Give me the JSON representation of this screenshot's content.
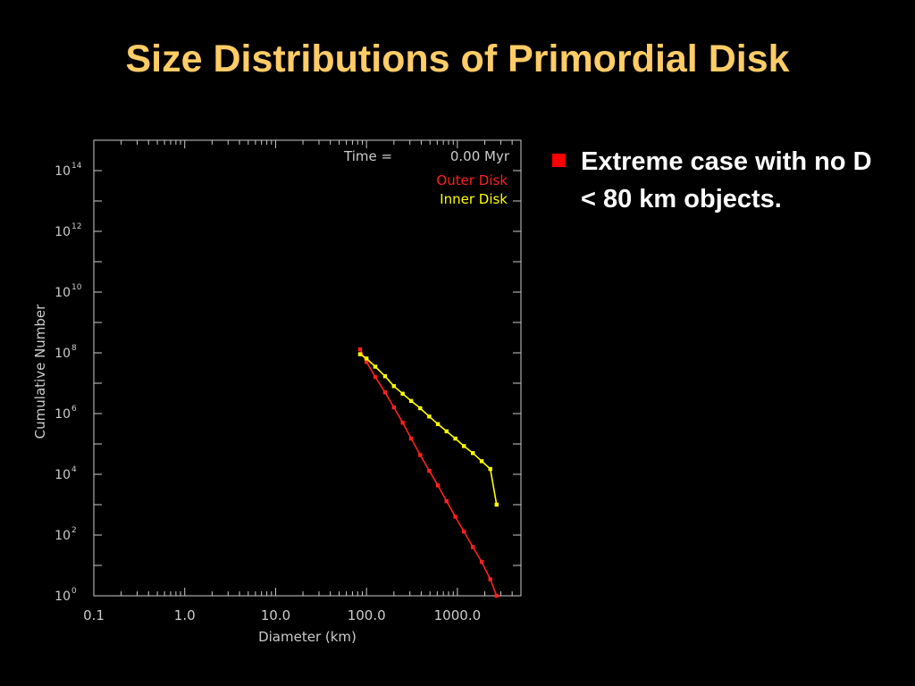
{
  "slide": {
    "title": "Size Distributions of Primordial Disk",
    "bullet_text": "Extreme case with no D < 80 km objects.",
    "title_color": "#ffcc66",
    "bullet_color": "#ff0000"
  },
  "chart_data": {
    "type": "line",
    "xscale": "log",
    "yscale": "log",
    "xlabel": "Diameter (km)",
    "ylabel": "Cumulative Number",
    "xlim": [
      0.1,
      5000
    ],
    "ylim": [
      1,
      1000000000000000.0
    ],
    "x_ticks": [
      0.1,
      1,
      10,
      100,
      1000
    ],
    "x_tick_labels": [
      "0.1",
      "1.0",
      "10.0",
      "100.0",
      "1000.0"
    ],
    "y_ticks": [
      1,
      100,
      10000,
      1000000,
      100000000,
      10000000000,
      1000000000000,
      100000000000000
    ],
    "y_tick_bases": [
      "10",
      "10",
      "10",
      "10",
      "10",
      "10",
      "10",
      "10"
    ],
    "y_tick_exps": [
      "0",
      "2",
      "4",
      "6",
      "8",
      "10",
      "12",
      "14"
    ],
    "annotation": {
      "label": "Time =",
      "value": "0.00 Myr"
    },
    "series": [
      {
        "name": "Outer Disk",
        "color": "#ff2020",
        "x": [
          85,
          100,
          125,
          160,
          200,
          250,
          310,
          390,
          490,
          610,
          760,
          950,
          1180,
          1480,
          1850,
          2300,
          2700
        ],
        "y": [
          130000000.0,
          50000000.0,
          16000000.0,
          5000000.0,
          1600000.0,
          500000.0,
          150000.0,
          43000.0,
          13000.0,
          4300.0,
          1300.0,
          400,
          130,
          40,
          13,
          3.5,
          1
        ]
      },
      {
        "name": "Inner Disk",
        "color": "#ffff00",
        "x": [
          85,
          100,
          125,
          160,
          200,
          250,
          310,
          390,
          490,
          610,
          760,
          950,
          1180,
          1480,
          1850,
          2300,
          2700
        ],
        "y": [
          90000000.0,
          65000000.0,
          35000000.0,
          17000000.0,
          8000000.0,
          4500000.0,
          2600000.0,
          1500000.0,
          800000.0,
          450000.0,
          260000.0,
          150000.0,
          85000.0,
          50000.0,
          27000.0,
          15000.0,
          1000.0
        ]
      }
    ],
    "axis_color": "#cccccc",
    "grid": false,
    "legend_position": "top-right"
  }
}
